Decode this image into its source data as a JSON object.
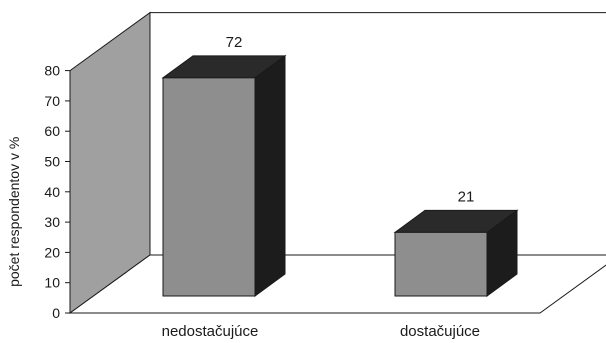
{
  "chart_data": {
    "type": "bar",
    "categories": [
      "nedostačujúce",
      "dostačujúce"
    ],
    "values": [
      72,
      21
    ],
    "ylabel": "počet respondentov v %",
    "ylim": [
      0,
      80
    ],
    "yticks": [
      0,
      10,
      20,
      30,
      40,
      50,
      60,
      70,
      80
    ],
    "grid": false,
    "legend": "none",
    "style": "3d",
    "colors": {
      "bar_front": "#8e8e8e",
      "bar_side": "#1c1c1c",
      "bar_top": "#2a2a2a",
      "side_wall": "#a0a0a0",
      "back_wall": "#ffffff",
      "floor": "#ffffff",
      "outline": "#1a1a1a"
    }
  }
}
